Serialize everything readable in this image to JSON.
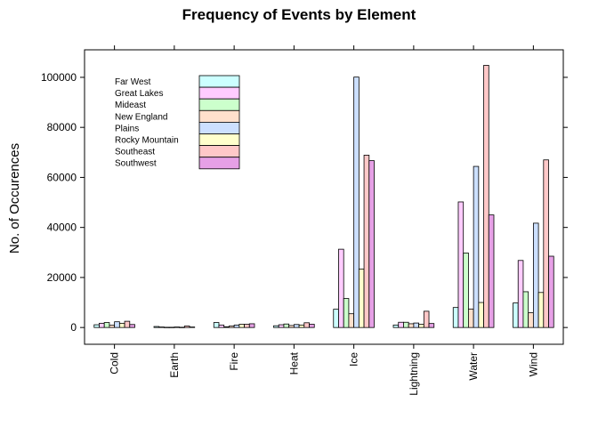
{
  "chart_data": {
    "type": "bar",
    "title": "Frequency of Events by Element",
    "xlabel": "",
    "ylabel": "No. of Occurences",
    "categories": [
      "Cold",
      "Earth",
      "Fire",
      "Heat",
      "Ice",
      "Lightning",
      "Water",
      "Wind"
    ],
    "ylim": [
      -6700,
      111000
    ],
    "yticks": [
      0,
      20000,
      40000,
      60000,
      80000,
      100000
    ],
    "grid": false,
    "legend_position": "top-left",
    "series": [
      {
        "name": "Far West",
        "color": "#CCFFFF",
        "values": [
          1100,
          400,
          2000,
          700,
          7300,
          1000,
          8000,
          9800
        ]
      },
      {
        "name": "Great Lakes",
        "color": "#FFCCFF",
        "values": [
          1700,
          200,
          1000,
          1100,
          31300,
          2100,
          50200,
          26800
        ]
      },
      {
        "name": "Mideast",
        "color": "#CCFFCC",
        "values": [
          2000,
          100,
          300,
          1400,
          11600,
          2100,
          29800,
          14300
        ]
      },
      {
        "name": "New England",
        "color": "#FFE0CC",
        "values": [
          900,
          100,
          600,
          800,
          5500,
          1500,
          7400,
          5900
        ]
      },
      {
        "name": "Plains",
        "color": "#CCE0FF",
        "values": [
          2300,
          200,
          1000,
          1200,
          100100,
          1800,
          64400,
          41700
        ]
      },
      {
        "name": "Rocky Mountain",
        "color": "#FFFFCC",
        "values": [
          1700,
          100,
          1300,
          1000,
          23400,
          1300,
          10000,
          14000
        ]
      },
      {
        "name": "Southeast",
        "color": "#FFC8C8",
        "values": [
          2500,
          600,
          1300,
          1900,
          68900,
          6500,
          104800,
          67000
        ]
      },
      {
        "name": "Southwest",
        "color": "#E6A0E6",
        "values": [
          1200,
          200,
          1500,
          1300,
          66700,
          1600,
          45000,
          28500
        ]
      }
    ]
  }
}
